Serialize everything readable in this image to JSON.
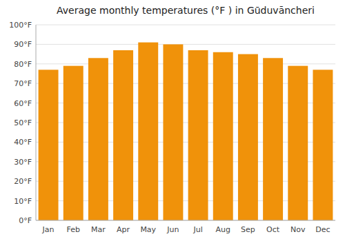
{
  "chart_data": {
    "type": "bar",
    "title": "Average monthly temperatures (°F ) in Gūduvāncheri",
    "categories": [
      "Jan",
      "Feb",
      "Mar",
      "Apr",
      "May",
      "Jun",
      "Jul",
      "Aug",
      "Sep",
      "Oct",
      "Nov",
      "Dec"
    ],
    "values": [
      77,
      79,
      83,
      87,
      91,
      90,
      87,
      86,
      85,
      83,
      79,
      77
    ],
    "color": "#F0920A",
    "ylim": [
      0,
      100
    ],
    "yticks": [
      {
        "value": 0,
        "label": "0°F"
      },
      {
        "value": 10,
        "label": "10°F"
      },
      {
        "value": 20,
        "label": "20°F"
      },
      {
        "value": 30,
        "label": "30°F"
      },
      {
        "value": 40,
        "label": "40°F"
      },
      {
        "value": 50,
        "label": "50°F"
      },
      {
        "value": 60,
        "label": "60°F"
      },
      {
        "value": 70,
        "label": "70°F"
      },
      {
        "value": 80,
        "label": "80°F"
      },
      {
        "value": 90,
        "label": "90°F"
      },
      {
        "value": 100,
        "label": "100°F"
      }
    ],
    "grid": true
  }
}
